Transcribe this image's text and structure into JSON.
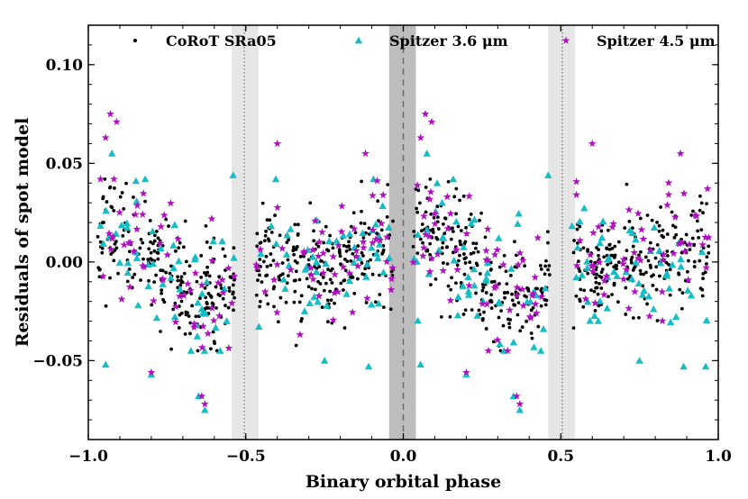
{
  "chart_data": {
    "type": "scatter",
    "title": "",
    "xlabel": "Binary orbital phase",
    "ylabel": "Residuals of spot model",
    "xlim": [
      -1.0,
      1.0
    ],
    "ylim": [
      -0.09,
      0.12
    ],
    "xticks": [
      -1.0,
      -0.5,
      0.0,
      0.5,
      1.0
    ],
    "xtick_labels": [
      "−1.0",
      "−0.5",
      "0.0",
      "0.5",
      "1.0"
    ],
    "yticks": [
      -0.05,
      0.0,
      0.05,
      0.1
    ],
    "ytick_labels": [
      "−0.05",
      "0.00",
      "0.05",
      "0.10"
    ],
    "legend_position": "top",
    "shaded_bands": [
      {
        "name": "secondary-eclipse-band-left",
        "x0": -0.545,
        "x1": -0.46,
        "color": "#e6e6e6"
      },
      {
        "name": "primary-eclipse-band",
        "x0": -0.045,
        "x1": 0.04,
        "color": "#bdbdbd"
      },
      {
        "name": "secondary-eclipse-band-right",
        "x0": 0.46,
        "x1": 0.545,
        "color": "#e6e6e6"
      }
    ],
    "vertical_lines": [
      {
        "name": "secondary-eclipse-line-left",
        "x": -0.505,
        "style": "dotted"
      },
      {
        "name": "primary-eclipse-line",
        "x": 0.0,
        "style": "dashed"
      },
      {
        "name": "secondary-eclipse-line-right",
        "x": 0.505,
        "style": "dotted"
      }
    ],
    "series": [
      {
        "name": "CoRoT SRa05",
        "marker": "dot",
        "color": "#000000",
        "segments": [
          [
            -0.97,
            -0.535
          ],
          [
            -0.47,
            -0.03
          ],
          [
            0.03,
            0.465
          ],
          [
            0.535,
            0.97
          ]
        ],
        "n_per_segment": 220
      },
      {
        "name": "Spitzer 3.6 μm",
        "marker": "triangle",
        "color": "#17bcc4",
        "segments": [
          [
            -0.97,
            -0.535
          ],
          [
            -0.47,
            -0.03
          ],
          [
            0.03,
            0.465
          ],
          [
            0.535,
            0.97
          ]
        ],
        "n_per_segment": 50
      },
      {
        "name": "Spitzer 4.5 μm",
        "marker": "star",
        "color": "#b010c0",
        "segments": [
          [
            -0.97,
            -0.535
          ],
          [
            -0.47,
            -0.03
          ],
          [
            0.03,
            0.465
          ],
          [
            0.535,
            0.97
          ]
        ],
        "n_per_segment": 55
      }
    ],
    "outliers": [
      {
        "series": 2,
        "x": -0.945,
        "y": 0.063
      },
      {
        "series": 2,
        "x": -0.93,
        "y": 0.075
      },
      {
        "series": 2,
        "x": -0.91,
        "y": 0.071
      },
      {
        "series": 1,
        "x": -0.925,
        "y": 0.055
      },
      {
        "series": 2,
        "x": 0.055,
        "y": 0.063
      },
      {
        "series": 2,
        "x": 0.07,
        "y": 0.075
      },
      {
        "series": 2,
        "x": 0.09,
        "y": 0.071
      },
      {
        "series": 1,
        "x": 0.075,
        "y": 0.055
      },
      {
        "series": 2,
        "x": -0.4,
        "y": 0.06
      },
      {
        "series": 2,
        "x": 0.6,
        "y": 0.06
      },
      {
        "series": 2,
        "x": -0.12,
        "y": 0.055
      },
      {
        "series": 2,
        "x": 0.88,
        "y": 0.055
      },
      {
        "series": 1,
        "x": -0.8,
        "y": -0.057
      },
      {
        "series": 2,
        "x": -0.8,
        "y": -0.056
      },
      {
        "series": 1,
        "x": 0.2,
        "y": -0.057
      },
      {
        "series": 2,
        "x": 0.2,
        "y": -0.056
      },
      {
        "series": 1,
        "x": -0.65,
        "y": -0.068
      },
      {
        "series": 2,
        "x": -0.64,
        "y": -0.068
      },
      {
        "series": 1,
        "x": -0.63,
        "y": -0.075
      },
      {
        "series": 2,
        "x": -0.63,
        "y": -0.072
      },
      {
        "series": 1,
        "x": 0.35,
        "y": -0.068
      },
      {
        "series": 2,
        "x": 0.36,
        "y": -0.068
      },
      {
        "series": 1,
        "x": 0.37,
        "y": -0.075
      },
      {
        "series": 2,
        "x": 0.37,
        "y": -0.072
      },
      {
        "series": 1,
        "x": -0.11,
        "y": -0.053
      },
      {
        "series": 1,
        "x": 0.89,
        "y": -0.053
      },
      {
        "series": 1,
        "x": -0.25,
        "y": -0.05
      },
      {
        "series": 1,
        "x": 0.75,
        "y": -0.05
      },
      {
        "series": 1,
        "x": -0.945,
        "y": -0.052
      },
      {
        "series": 1,
        "x": 0.055,
        "y": -0.052
      },
      {
        "series": 1,
        "x": -0.54,
        "y": 0.044
      },
      {
        "series": 1,
        "x": 0.46,
        "y": 0.044
      },
      {
        "series": 1,
        "x": 0.96,
        "y": -0.053
      }
    ]
  }
}
